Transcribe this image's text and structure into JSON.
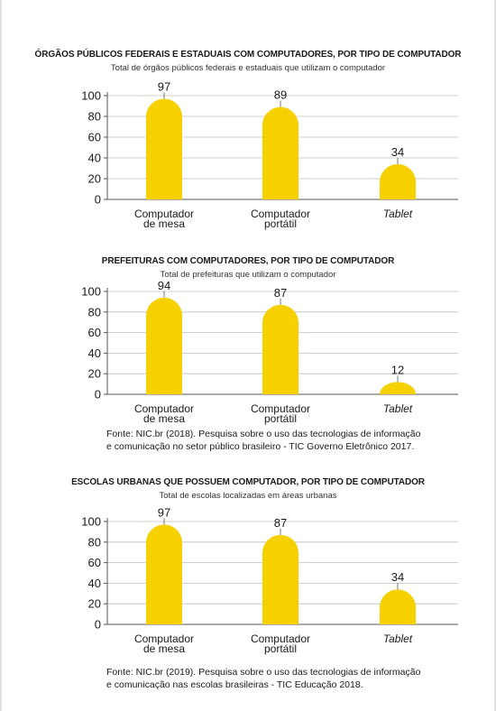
{
  "colors": {
    "bar": "#f7d000",
    "axis": "#555555",
    "grid": "#bfbfbf",
    "text": "#1a1a1a"
  },
  "chart_data": [
    {
      "type": "bar",
      "title": "ÓRGÃOS PÚBLICOS FEDERAIS E ESTADUAIS COM COMPUTADORES, POR TIPO DE COMPUTADOR",
      "subtitle": "Total de órgãos públicos federais e estaduais que utilizam o computador",
      "categories": [
        [
          "Computador",
          "de mesa"
        ],
        [
          "Computador",
          "portátil"
        ],
        [
          "Tablet"
        ]
      ],
      "values": [
        97,
        89,
        34
      ],
      "ylim": [
        0,
        100
      ],
      "yticks": [
        0,
        20,
        40,
        60,
        80,
        100
      ],
      "grid": true
    },
    {
      "type": "bar",
      "title": "PREFEITURAS COM COMPUTADORES, POR TIPO DE COMPUTADOR",
      "subtitle": "Total de prefeituras que utilizam o computador",
      "categories": [
        [
          "Computador",
          "de mesa"
        ],
        [
          "Computador",
          "portátil"
        ],
        [
          "Tablet"
        ]
      ],
      "values": [
        94,
        87,
        12
      ],
      "ylim": [
        0,
        100
      ],
      "yticks": [
        0,
        20,
        40,
        60,
        80,
        100
      ],
      "grid": true,
      "source": [
        "Fonte: NIC.br (2018). Pesquisa sobre o uso das tecnologias de informação",
        "e comunicação no setor público brasileiro - TIC Governo Eletrônico 2017."
      ]
    },
    {
      "type": "bar",
      "title": "ESCOLAS URBANAS QUE POSSUEM COMPUTADOR, POR TIPO DE COMPUTADOR",
      "subtitle": "Total de escolas localizadas em áreas urbanas",
      "categories": [
        [
          "Computador",
          "de mesa"
        ],
        [
          "Computador",
          "portátil"
        ],
        [
          "Tablet"
        ]
      ],
      "values": [
        97,
        87,
        34
      ],
      "ylim": [
        0,
        100
      ],
      "yticks": [
        0,
        20,
        40,
        60,
        80,
        100
      ],
      "grid": true,
      "source": [
        "Fonte: NIC.br (2019). Pesquisa sobre o uso das tecnologias de informação",
        "e comunicação nas escolas brasileiras - TIC Educação 2018."
      ]
    }
  ]
}
